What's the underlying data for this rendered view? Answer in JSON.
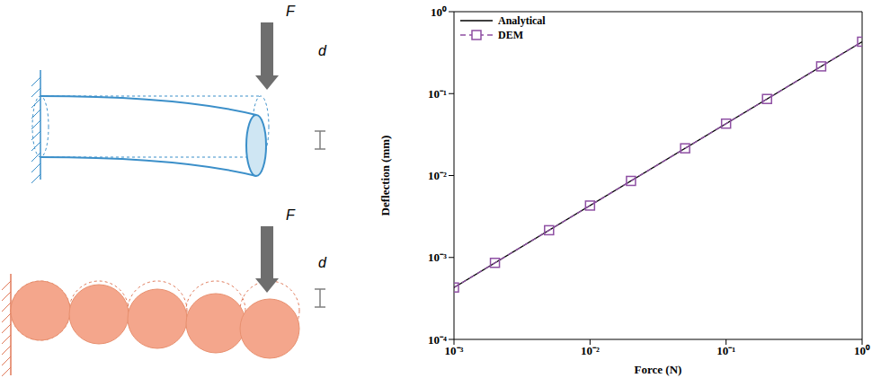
{
  "diagram": {
    "continuum": {
      "force": "F",
      "deflection": "d"
    },
    "dem": {
      "force": "F",
      "deflection": "d"
    }
  },
  "chart_data": {
    "type": "line",
    "log": true,
    "x_label": "Force (N)",
    "y_label": "Deflection (mm)",
    "xlim": [
      0.001,
      1
    ],
    "ylim": [
      0.0001,
      1
    ],
    "xticks": [
      {
        "value": 0.001,
        "label": "10⁻³"
      },
      {
        "value": 0.01,
        "label": "10⁻²"
      },
      {
        "value": 0.1,
        "label": "10⁻¹"
      },
      {
        "value": 1,
        "label": "10⁰"
      }
    ],
    "yticks": [
      {
        "value": 0.0001,
        "label": "10⁻⁴"
      },
      {
        "value": 0.001,
        "label": "10⁻³"
      },
      {
        "value": 0.01,
        "label": "10⁻²"
      },
      {
        "value": 0.1,
        "label": "10⁻¹"
      },
      {
        "value": 1,
        "label": "10⁰"
      }
    ],
    "legend": "upper left",
    "series": [
      {
        "name": "Analytical",
        "color": "#000000",
        "line_style": "solid",
        "marker": "none",
        "x": [
          0.001,
          1
        ],
        "values": [
          0.00043,
          0.43
        ]
      },
      {
        "name": "DEM",
        "color": "#8e4fa3",
        "line_style": "dashed",
        "marker": "square",
        "x": [
          0.001,
          0.002,
          0.005,
          0.01,
          0.02,
          0.05,
          0.1,
          0.2,
          0.5,
          1
        ],
        "values": [
          0.00043,
          0.00086,
          0.00215,
          0.0043,
          0.0086,
          0.0215,
          0.043,
          0.086,
          0.215,
          0.43
        ]
      }
    ]
  }
}
